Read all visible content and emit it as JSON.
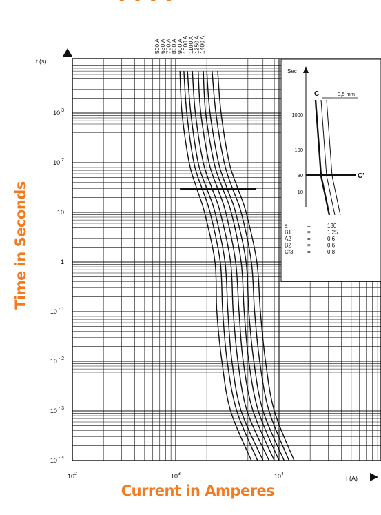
{
  "header": {
    "cut_title": "• • • •"
  },
  "chart_data": {
    "type": "line",
    "title": "",
    "xlabel": "Current in Amperes",
    "ylabel": "Time in Seconds",
    "x_axis_label": "I (A)",
    "y_axis_label": "t (s)",
    "x_scale": "log",
    "y_scale": "log",
    "xlim": [
      100,
      15000
    ],
    "ylim": [
      0.0001,
      10000
    ],
    "x_ticks": [
      {
        "v": 100,
        "base": "10",
        "exp": "2"
      },
      {
        "v": 1000,
        "base": "10",
        "exp": "3"
      },
      {
        "v": 10000,
        "base": "10",
        "exp": "4"
      }
    ],
    "y_ticks": [
      {
        "v": 1000,
        "base": "10",
        "exp": "3"
      },
      {
        "v": 100,
        "base": "10",
        "exp": "2"
      },
      {
        "v": 10,
        "base": "10",
        "exp": ""
      },
      {
        "v": 1,
        "base": "1",
        "exp": ""
      },
      {
        "v": 0.1,
        "base": "10",
        "exp": "- 1"
      },
      {
        "v": 0.01,
        "base": "10",
        "exp": "- 2"
      },
      {
        "v": 0.001,
        "base": "10",
        "exp": "- 3"
      },
      {
        "v": 0.0001,
        "base": "10",
        "exp": "- 4"
      }
    ],
    "grid": true,
    "series": [
      {
        "name": "500 A",
        "points": [
          [
            1100,
            7000
          ],
          [
            1150,
            1000
          ],
          [
            1350,
            100
          ],
          [
            1600,
            30
          ],
          [
            1900,
            10
          ],
          [
            2400,
            1
          ],
          [
            2500,
            0.1
          ],
          [
            2800,
            0.01
          ],
          [
            3400,
            0.001
          ],
          [
            5400,
            0.0001
          ]
        ]
      },
      {
        "name": "630 A",
        "points": [
          [
            1200,
            7000
          ],
          [
            1280,
            1000
          ],
          [
            1500,
            100
          ],
          [
            1800,
            30
          ],
          [
            2150,
            10
          ],
          [
            2700,
            1
          ],
          [
            2850,
            0.1
          ],
          [
            3150,
            0.01
          ],
          [
            3900,
            0.001
          ],
          [
            6200,
            0.0001
          ]
        ]
      },
      {
        "name": "700 A",
        "points": [
          [
            1300,
            7000
          ],
          [
            1400,
            1000
          ],
          [
            1650,
            100
          ],
          [
            2000,
            30
          ],
          [
            2400,
            10
          ],
          [
            3000,
            1
          ],
          [
            3200,
            0.1
          ],
          [
            3500,
            0.01
          ],
          [
            4300,
            0.001
          ],
          [
            7000,
            0.0001
          ]
        ]
      },
      {
        "name": "800 A",
        "points": [
          [
            1450,
            7000
          ],
          [
            1550,
            1000
          ],
          [
            1850,
            100
          ],
          [
            2250,
            30
          ],
          [
            2700,
            10
          ],
          [
            3400,
            1
          ],
          [
            3600,
            0.1
          ],
          [
            4000,
            0.01
          ],
          [
            4900,
            0.001
          ],
          [
            8000,
            0.0001
          ]
        ]
      },
      {
        "name": "900 A",
        "points": [
          [
            1650,
            7000
          ],
          [
            1750,
            1000
          ],
          [
            2100,
            100
          ],
          [
            2550,
            30
          ],
          [
            3050,
            10
          ],
          [
            3800,
            1
          ],
          [
            4100,
            0.1
          ],
          [
            4500,
            0.01
          ],
          [
            5600,
            0.001
          ],
          [
            9000,
            0.0001
          ]
        ]
      },
      {
        "name": "1000 A",
        "points": [
          [
            1850,
            7000
          ],
          [
            1950,
            1000
          ],
          [
            2350,
            100
          ],
          [
            2850,
            30
          ],
          [
            3450,
            10
          ],
          [
            4300,
            1
          ],
          [
            4600,
            0.1
          ],
          [
            5100,
            0.01
          ],
          [
            6300,
            0.001
          ],
          [
            10000,
            0.0001
          ]
        ]
      },
      {
        "name": "1100 A",
        "points": [
          [
            2000,
            7000
          ],
          [
            2150,
            1000
          ],
          [
            2600,
            100
          ],
          [
            3150,
            30
          ],
          [
            3800,
            10
          ],
          [
            4800,
            1
          ],
          [
            5100,
            0.1
          ],
          [
            5700,
            0.01
          ],
          [
            7000,
            0.001
          ],
          [
            11200,
            0.0001
          ]
        ]
      },
      {
        "name": "1250 A",
        "points": [
          [
            2250,
            7000
          ],
          [
            2450,
            1000
          ],
          [
            2950,
            100
          ],
          [
            3550,
            30
          ],
          [
            4300,
            10
          ],
          [
            5400,
            1
          ],
          [
            5800,
            0.1
          ],
          [
            6500,
            0.01
          ],
          [
            8000,
            0.001
          ],
          [
            12500,
            0.0001
          ]
        ]
      },
      {
        "name": "1400 A",
        "points": [
          [
            2550,
            7000
          ],
          [
            2750,
            1000
          ],
          [
            3300,
            100
          ],
          [
            4000,
            30
          ],
          [
            4800,
            10
          ],
          [
            6100,
            1
          ],
          [
            6600,
            0.1
          ],
          [
            7400,
            0.01
          ],
          [
            9000,
            0.001
          ],
          [
            14000,
            0.0001
          ]
        ]
      }
    ],
    "annotations": {
      "marker_line": {
        "x_start": 1100,
        "x_end": 6000,
        "y": 30
      },
      "inset": {
        "y_title": "Sec",
        "y_ticks": [
          "1000",
          "100",
          "30",
          "10"
        ],
        "label_c": "C",
        "label_c_prime": "C'",
        "dimension": "3,5 mm"
      },
      "coefficients": [
        {
          "key": "a",
          "eq": "=",
          "value": "130"
        },
        {
          "key": "B1",
          "eq": "=",
          "value": "1,25"
        },
        {
          "key": "A2",
          "eq": "=",
          "value": "0,6"
        },
        {
          "key": "B2",
          "eq": "=",
          "value": "0,6"
        },
        {
          "key": "Cf3",
          "eq": "=",
          "value": "0,8"
        }
      ]
    }
  }
}
